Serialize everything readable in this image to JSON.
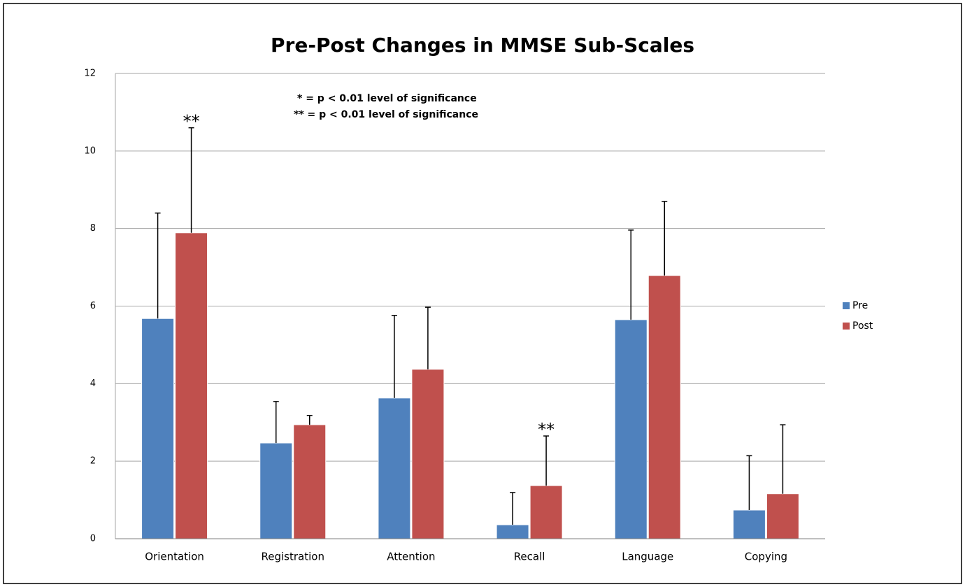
{
  "chart_data": {
    "type": "bar",
    "title": "Pre-Post Changes in MMSE Sub-Scales",
    "categories": [
      "Orientation",
      "Registration",
      "Attention",
      "Recall",
      "Language",
      "Copying"
    ],
    "series": [
      {
        "name": "Pre",
        "color": "#4f81bd",
        "values": [
          5.68,
          2.47,
          3.63,
          0.36,
          5.65,
          0.74
        ],
        "errors": [
          2.72,
          1.07,
          2.13,
          0.83,
          2.31,
          1.4
        ]
      },
      {
        "name": "Post",
        "color": "#c0504d",
        "values": [
          7.89,
          2.94,
          4.37,
          1.37,
          6.79,
          1.16
        ],
        "errors": [
          2.71,
          0.24,
          1.6,
          1.28,
          1.91,
          1.78
        ],
        "annotations": [
          "**",
          null,
          null,
          "**",
          null,
          null
        ]
      }
    ],
    "notes": [
      "*  =  p < 0.01 level of significance",
      "** =  p < 0.01 level of significance"
    ],
    "ylim": [
      0,
      12
    ],
    "yticks": [
      0,
      2,
      4,
      6,
      8,
      10,
      12
    ],
    "grid": true,
    "legend": "right"
  }
}
